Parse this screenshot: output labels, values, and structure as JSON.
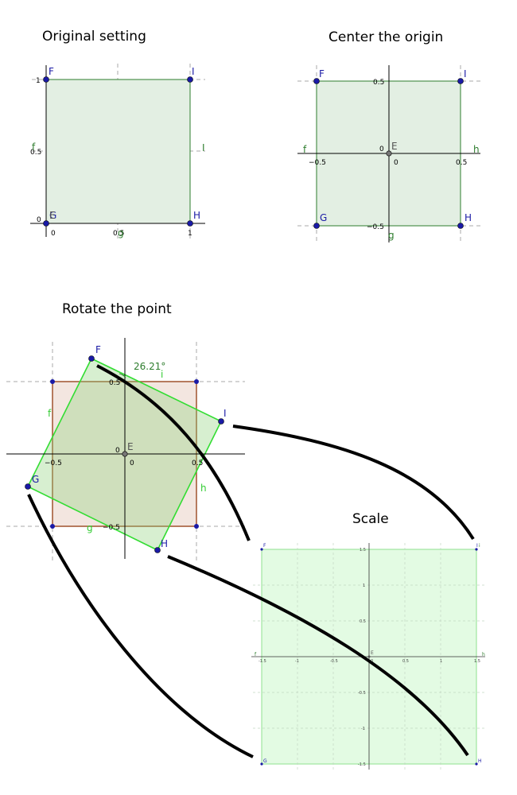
{
  "panels": {
    "original": {
      "title": "Original setting",
      "ticks": {
        "x0": "0",
        "x05": "0.5",
        "x1": "1",
        "y0": "0",
        "y05": "0.5",
        "y1": "1"
      },
      "points": {
        "F": "F",
        "I": "I",
        "E": "E",
        "G": "G",
        "H": "H"
      },
      "segments": {
        "f": "f",
        "i": "I",
        "g": "g"
      }
    },
    "center": {
      "title": "Center the origin",
      "ticks": {
        "xn05": "−0.5",
        "x0": "0",
        "x05": "0.5",
        "y05": "0.5",
        "y0": "0",
        "yn05": "−0.5"
      },
      "points": {
        "F": "F",
        "I": "I",
        "E": "E",
        "G": "G",
        "H": "H"
      },
      "segments": {
        "f": "f",
        "h": "h",
        "g": "g"
      }
    },
    "rotate": {
      "title": "Rotate the point",
      "angle": "26.21°",
      "ticks": {
        "xn05": "−0.5",
        "x0": "0",
        "x05": "0.5",
        "y05": "0.5",
        "y0": "0",
        "yn05": "−0.5"
      },
      "points": {
        "F": "F",
        "I": "I",
        "E": "E",
        "G": "G",
        "H": "H"
      },
      "segments": {
        "i": "i",
        "f": "f",
        "h": "h",
        "g": "g"
      }
    },
    "scale": {
      "title": "Scale",
      "xticks": [
        "-1.5",
        "-1",
        "-0.5",
        "0",
        "0.5",
        "1",
        "1.5"
      ],
      "yticks": [
        "1.5",
        "1",
        "0.5",
        "-0.5",
        "-1",
        "-1.5"
      ],
      "points": {
        "F": "F",
        "I": "I",
        "E": "E",
        "G": "G",
        "H": "H"
      },
      "segments": {
        "f": "f",
        "i": "i",
        "h": "h"
      }
    }
  },
  "colors": {
    "blue_point": "#1a1aa6",
    "dark_green": "#2e7d2e",
    "bright_green": "#33dd33",
    "brown": "#a0522d"
  }
}
